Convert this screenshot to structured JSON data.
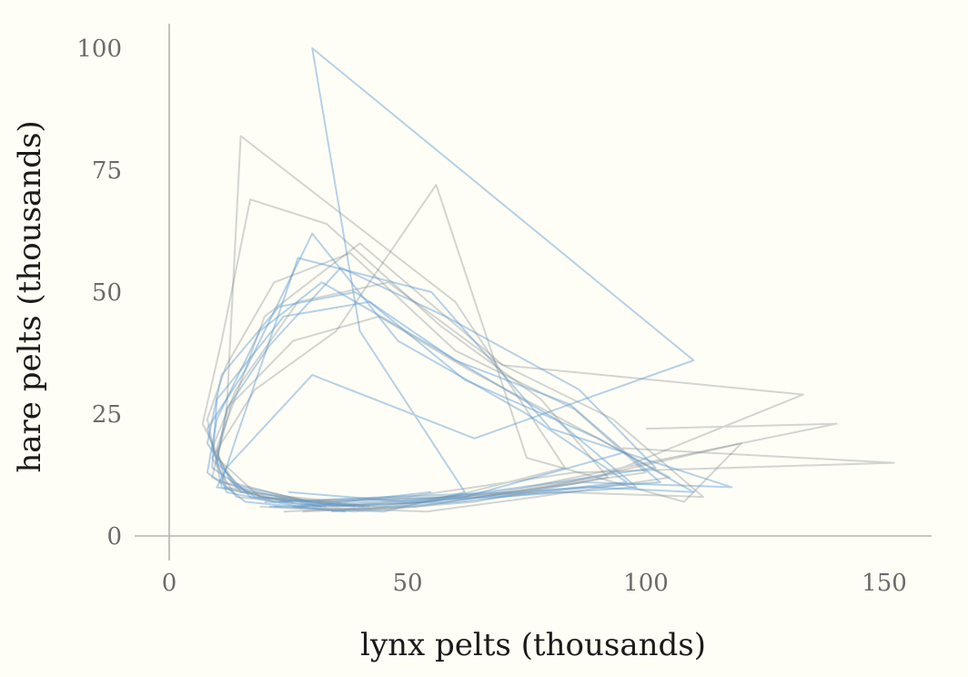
{
  "chart_data": {
    "type": "line",
    "title": "",
    "xlabel": "lynx pelts (thousands)",
    "ylabel": "hare pelts (thousands)",
    "xlim": [
      0,
      160
    ],
    "ylim": [
      0,
      100
    ],
    "x_ticks": [
      0,
      50,
      100,
      150
    ],
    "x_tick_labels": [
      "0",
      "50",
      "100",
      "150"
    ],
    "y_ticks": [
      0,
      25,
      50,
      75,
      100
    ],
    "y_tick_labels": [
      "0",
      "25",
      "50",
      "75",
      "100"
    ],
    "grid": false,
    "legend": "none",
    "colors": {
      "blue_series": "#5b9bd5",
      "gray_series": "#7f8a90",
      "axis": "#b3b3b3",
      "background": "#fffef6"
    },
    "series": [
      {
        "color": "blue",
        "points": [
          [
            22,
            6
          ],
          [
            45,
            5
          ],
          [
            62,
            9
          ],
          [
            40,
            42
          ],
          [
            30,
            100
          ],
          [
            110,
            36
          ],
          [
            64,
            20
          ],
          [
            30,
            33
          ],
          [
            12,
            14
          ],
          [
            10,
            10
          ],
          [
            25,
            7
          ]
        ]
      },
      {
        "color": "gray",
        "points": [
          [
            30,
            6
          ],
          [
            55,
            7
          ],
          [
            83,
            14
          ],
          [
            60,
            48
          ],
          [
            15,
            82
          ],
          [
            12,
            25
          ],
          [
            9,
            12
          ],
          [
            22,
            7
          ],
          [
            50,
            8
          ],
          [
            85,
            13
          ],
          [
            152,
            15
          ],
          [
            95,
            18
          ]
        ]
      },
      {
        "color": "gray",
        "points": [
          [
            24,
            5
          ],
          [
            47,
            6
          ],
          [
            90,
            12
          ],
          [
            133,
            29
          ],
          [
            70,
            35
          ],
          [
            40,
            60
          ],
          [
            20,
            45
          ],
          [
            10,
            18
          ],
          [
            12,
            10
          ],
          [
            35,
            6
          ],
          [
            70,
            9
          ],
          [
            140,
            23
          ],
          [
            100,
            22
          ]
        ]
      },
      {
        "color": "blue",
        "points": [
          [
            26,
            6
          ],
          [
            58,
            7
          ],
          [
            87,
            11
          ],
          [
            118,
            10
          ],
          [
            80,
            22
          ],
          [
            55,
            50
          ],
          [
            27,
            57
          ],
          [
            14,
            20
          ],
          [
            11,
            11
          ],
          [
            30,
            7
          ],
          [
            62,
            8
          ],
          [
            95,
            17
          ]
        ]
      },
      {
        "color": "gray",
        "points": [
          [
            28,
            5
          ],
          [
            52,
            6
          ],
          [
            79,
            10
          ],
          [
            120,
            19
          ],
          [
            108,
            7
          ],
          [
            75,
            16
          ],
          [
            56,
            72
          ],
          [
            35,
            42
          ],
          [
            18,
            30
          ],
          [
            9,
            16
          ],
          [
            14,
            8
          ],
          [
            33,
            6
          ]
        ]
      },
      {
        "color": "blue",
        "points": [
          [
            20,
            7
          ],
          [
            40,
            6
          ],
          [
            66,
            8
          ],
          [
            96,
            11
          ],
          [
            75,
            25
          ],
          [
            48,
            40
          ],
          [
            30,
            62
          ],
          [
            16,
            34
          ],
          [
            8,
            22
          ],
          [
            12,
            9
          ],
          [
            27,
            6
          ],
          [
            55,
            9
          ]
        ]
      },
      {
        "color": "gray",
        "points": [
          [
            22,
            8
          ],
          [
            44,
            6
          ],
          [
            71,
            9
          ],
          [
            100,
            13
          ],
          [
            85,
            26
          ],
          [
            60,
            38
          ],
          [
            38,
            58
          ],
          [
            22,
            52
          ],
          [
            12,
            35
          ],
          [
            8,
            24
          ],
          [
            11,
            10
          ],
          [
            26,
            7
          ]
        ]
      },
      {
        "color": "blue",
        "points": [
          [
            34,
            5
          ],
          [
            61,
            7
          ],
          [
            88,
            10
          ],
          [
            110,
            9
          ],
          [
            90,
            20
          ],
          [
            62,
            32
          ],
          [
            42,
            48
          ],
          [
            24,
            45
          ],
          [
            10,
            28
          ],
          [
            9,
            14
          ],
          [
            18,
            8
          ],
          [
            41,
            6
          ]
        ]
      },
      {
        "color": "gray",
        "points": [
          [
            19,
            6
          ],
          [
            39,
            5
          ],
          [
            64,
            7
          ],
          [
            92,
            12
          ],
          [
            78,
            28
          ],
          [
            57,
            43
          ],
          [
            33,
            64
          ],
          [
            17,
            69
          ],
          [
            11,
            40
          ],
          [
            7,
            23
          ],
          [
            13,
            11
          ],
          [
            29,
            7
          ]
        ]
      },
      {
        "color": "blue",
        "points": [
          [
            25,
            9
          ],
          [
            50,
            7
          ],
          [
            74,
            10
          ],
          [
            102,
            14
          ],
          [
            86,
            30
          ],
          [
            58,
            45
          ],
          [
            36,
            55
          ],
          [
            21,
            39
          ],
          [
            12,
            26
          ],
          [
            10,
            15
          ],
          [
            17,
            8
          ],
          [
            39,
            6
          ]
        ]
      },
      {
        "color": "gray",
        "points": [
          [
            31,
            7
          ],
          [
            57,
            8
          ],
          [
            82,
            9
          ],
          [
            112,
            8
          ],
          [
            93,
            24
          ],
          [
            68,
            36
          ],
          [
            46,
            52
          ],
          [
            27,
            48
          ],
          [
            14,
            30
          ],
          [
            9,
            18
          ],
          [
            15,
            9
          ],
          [
            36,
            7
          ]
        ]
      },
      {
        "color": "blue",
        "points": [
          [
            21,
            6
          ],
          [
            43,
            7
          ],
          [
            69,
            8
          ],
          [
            98,
            10
          ],
          [
            81,
            24
          ],
          [
            55,
            39
          ],
          [
            32,
            52
          ],
          [
            19,
            42
          ],
          [
            10,
            24
          ],
          [
            8,
            13
          ],
          [
            16,
            7
          ],
          [
            37,
            5
          ]
        ]
      },
      {
        "color": "gray",
        "points": [
          [
            27,
            6
          ],
          [
            54,
            5
          ],
          [
            77,
            8
          ],
          [
            105,
            12
          ],
          [
            88,
            21
          ],
          [
            63,
            34
          ],
          [
            44,
            45
          ],
          [
            26,
            40
          ],
          [
            13,
            27
          ],
          [
            10,
            16
          ],
          [
            19,
            8
          ],
          [
            42,
            6
          ]
        ]
      },
      {
        "color": "blue",
        "points": [
          [
            23,
            7
          ],
          [
            46,
            8
          ],
          [
            73,
            9
          ],
          [
            103,
            11
          ],
          [
            84,
            27
          ],
          [
            60,
            36
          ],
          [
            39,
            50
          ],
          [
            23,
            47
          ],
          [
            11,
            33
          ],
          [
            8,
            19
          ],
          [
            14,
            10
          ],
          [
            32,
            6
          ]
        ]
      }
    ]
  }
}
